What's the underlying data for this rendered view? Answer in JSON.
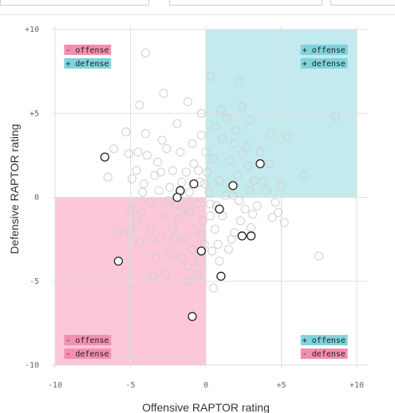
{
  "chart_data": {
    "type": "scatter",
    "xlabel": "Offensive RAPTOR rating",
    "ylabel": "Defensive RAPTOR rating",
    "xlim": [
      -10,
      10
    ],
    "ylim": [
      -10,
      10
    ],
    "x_ticks": [
      -10,
      -5,
      0,
      5,
      10
    ],
    "x_tick_labels": [
      "-10",
      "-5",
      "0",
      "+5",
      "+10"
    ],
    "y_ticks": [
      -10,
      -5,
      0,
      5,
      10
    ],
    "y_tick_labels": [
      "-10",
      "-5",
      "0",
      "+5",
      "+10"
    ],
    "grid": true,
    "colors": {
      "positive": "#c3eaee",
      "negative": "#fcc7d8",
      "positive_label": "#7fd3dc",
      "negative_label": "#f38eb0"
    },
    "quadrant_labels": {
      "top_left": [
        {
          "text": "- offense",
          "tone": "negative"
        },
        {
          "text": "+ defense",
          "tone": "positive"
        }
      ],
      "top_right": [
        {
          "text": "+ offense",
          "tone": "positive"
        },
        {
          "text": "+ defense",
          "tone": "positive"
        }
      ],
      "bottom_left": [
        {
          "text": "- offense",
          "tone": "negative"
        },
        {
          "text": "- defense",
          "tone": "negative"
        }
      ],
      "bottom_right": [
        {
          "text": "+ offense",
          "tone": "positive"
        },
        {
          "text": "- defense",
          "tone": "negative"
        }
      ]
    },
    "series": [
      {
        "role": "background",
        "points": [
          [
            -4.0,
            8.6
          ],
          [
            -1.2,
            5.7
          ],
          [
            0.3,
            7.2
          ],
          [
            2.2,
            6.9
          ],
          [
            2.4,
            5.4
          ],
          [
            3.0,
            4.6
          ],
          [
            8.6,
            4.8
          ],
          [
            5.4,
            3.6
          ],
          [
            6.5,
            1.3
          ],
          [
            4.3,
            3.8
          ],
          [
            4.0,
            0.4
          ],
          [
            -4.4,
            5.5
          ],
          [
            -2.8,
            6.2
          ],
          [
            -5.3,
            3.9
          ],
          [
            -4.5,
            2.7
          ],
          [
            -5.1,
            2.6
          ],
          [
            -3.2,
            2.1
          ],
          [
            -2.9,
            3.4
          ],
          [
            -3.4,
            1.3
          ],
          [
            -4.6,
            1.6
          ],
          [
            -4.2,
            0.3
          ],
          [
            -5.0,
            -0.7
          ],
          [
            -4.6,
            -1.5
          ],
          [
            -5.0,
            -2.1
          ],
          [
            -4.4,
            -2.7
          ],
          [
            -4.3,
            -0.9
          ],
          [
            -3.6,
            -1.8
          ],
          [
            -3.0,
            -2.4
          ],
          [
            -3.3,
            -3.6
          ],
          [
            -2.7,
            -4.6
          ],
          [
            -2.4,
            -3.4
          ],
          [
            -2.1,
            -2.5
          ],
          [
            -1.6,
            -3.6
          ],
          [
            -1.2,
            -4.1
          ],
          [
            -0.6,
            -4.6
          ],
          [
            -1.2,
            -5.0
          ],
          [
            -0.4,
            -3.8
          ],
          [
            -0.1,
            -2.8
          ],
          [
            0.4,
            -3.2
          ],
          [
            0.9,
            -3.8
          ],
          [
            1.5,
            -3.1
          ],
          [
            1.9,
            -2.1
          ],
          [
            2.3,
            -1.4
          ],
          [
            2.6,
            -0.7
          ],
          [
            3.4,
            -0.5
          ],
          [
            4.4,
            -1.2
          ],
          [
            5.2,
            -1.5
          ],
          [
            7.5,
            -3.5
          ],
          [
            -1.8,
            -1.3
          ],
          [
            -1.1,
            -0.9
          ],
          [
            -0.7,
            -2.0
          ],
          [
            -0.2,
            -1.4
          ],
          [
            0.6,
            -1.9
          ],
          [
            1.1,
            -1.1
          ],
          [
            0.7,
            -0.5
          ],
          [
            1.3,
            0.1
          ],
          [
            1.6,
            0.6
          ],
          [
            2.1,
            1.3
          ],
          [
            2.8,
            1.9
          ],
          [
            3.2,
            1.0
          ],
          [
            2.4,
            2.6
          ],
          [
            1.9,
            3.2
          ],
          [
            1.1,
            3.5
          ],
          [
            0.5,
            2.3
          ],
          [
            0.1,
            1.5
          ],
          [
            -0.4,
            0.9
          ],
          [
            -1.1,
            0.3
          ],
          [
            -1.6,
            0.9
          ],
          [
            -2.2,
            1.6
          ],
          [
            -1.7,
            2.7
          ],
          [
            -2.6,
            2.9
          ],
          [
            -0.9,
            3.2
          ],
          [
            -0.3,
            3.7
          ],
          [
            0.6,
            4.2
          ],
          [
            1.4,
            4.7
          ],
          [
            2.0,
            4.0
          ],
          [
            3.6,
            2.7
          ],
          [
            4.2,
            2.0
          ],
          [
            5.0,
            0.7
          ],
          [
            4.6,
            -0.3
          ],
          [
            3.1,
            -1.0
          ],
          [
            2.2,
            -0.2
          ],
          [
            1.8,
            0.1
          ],
          [
            0.9,
            1.0
          ],
          [
            0.2,
            0.3
          ],
          [
            -0.6,
            -0.4
          ],
          [
            -1.4,
            -0.6
          ],
          [
            -2.5,
            -0.2
          ],
          [
            -3.1,
            0.4
          ],
          [
            -3.7,
            -0.3
          ],
          [
            -2.8,
            -1.1
          ],
          [
            -2.2,
            -1.9
          ],
          [
            -1.5,
            -2.5
          ],
          [
            -0.9,
            -3.1
          ],
          [
            -0.3,
            -2.2
          ],
          [
            0.3,
            -1.1
          ],
          [
            -3.9,
            2.5
          ],
          [
            -4.9,
            1.1
          ],
          [
            -6.5,
            1.2
          ],
          [
            -5.8,
            -2.1
          ],
          [
            -6.1,
            2.9
          ],
          [
            -3.5,
            -4.7
          ],
          [
            -2.0,
            -0.5
          ],
          [
            -1.3,
            1.5
          ],
          [
            -0.8,
            2.0
          ],
          [
            0.0,
            2.7
          ],
          [
            1.6,
            2.2
          ],
          [
            2.7,
            3.0
          ],
          [
            3.0,
            -1.8
          ],
          [
            1.7,
            -2.5
          ],
          [
            0.8,
            -2.8
          ],
          [
            -0.1,
            0.8
          ],
          [
            -0.5,
            1.6
          ],
          [
            1.0,
            5.2
          ],
          [
            0.3,
            -0.4
          ],
          [
            -2.4,
            0.6
          ],
          [
            -3.0,
            1.5
          ],
          [
            -4.1,
            0.8
          ],
          [
            -1.9,
            4.4
          ],
          [
            -0.3,
            5.0
          ],
          [
            3.8,
            0.9
          ],
          [
            4.8,
            -0.9
          ],
          [
            0.5,
            -5.4
          ],
          [
            -4.0,
            3.8
          ],
          [
            -3.6,
            -2.5
          ],
          [
            2.9,
            0.4
          ]
        ]
      },
      {
        "role": "highlighted",
        "points": [
          [
            -6.7,
            2.4
          ],
          [
            3.6,
            2.0
          ],
          [
            -0.8,
            0.8
          ],
          [
            1.8,
            0.7
          ],
          [
            -1.7,
            0.4
          ],
          [
            -1.9,
            0.0
          ],
          [
            0.9,
            -0.7
          ],
          [
            2.4,
            -2.3
          ],
          [
            3.0,
            -2.3
          ],
          [
            -0.3,
            -3.2
          ],
          [
            -5.8,
            -3.8
          ],
          [
            1.0,
            -4.7
          ],
          [
            -0.9,
            -7.1
          ]
        ]
      }
    ]
  }
}
